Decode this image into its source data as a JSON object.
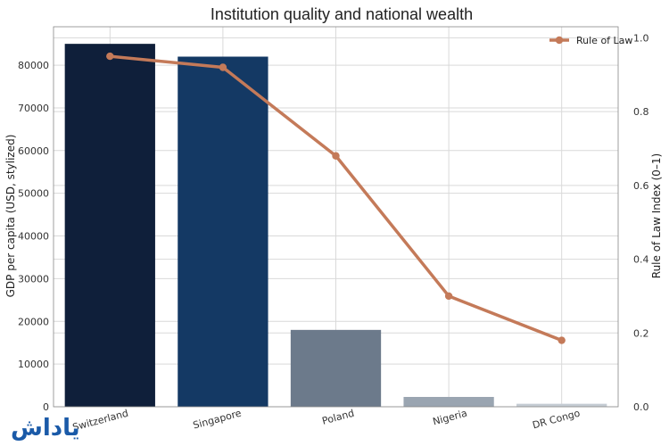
{
  "chart_data": {
    "type": "bar",
    "title": "Institution quality and national wealth",
    "categories": [
      "Switzerland",
      "Singapore",
      "Poland",
      "Nigeria",
      "DR Congo"
    ],
    "series": [
      {
        "name": "",
        "axis": "left",
        "type": "bar",
        "values": [
          85000,
          82000,
          18000,
          2300,
          700
        ],
        "colors": [
          "#0f1f3a",
          "#143964",
          "#6c7a8b",
          "#9aa5b1",
          "#c5ccd3"
        ]
      },
      {
        "name": "Rule of Law",
        "axis": "right",
        "type": "line",
        "values": [
          0.95,
          0.92,
          0.68,
          0.3,
          0.18
        ],
        "color": "#c47a59"
      }
    ],
    "ylabel": "GDP per capita (USD, stylized)",
    "y2label": "Rule of Law Index (0–1)",
    "ylim": [
      0,
      89000
    ],
    "y2lim": [
      0,
      1.03
    ],
    "yticks": [
      0,
      10000,
      20000,
      30000,
      40000,
      50000,
      60000,
      70000,
      80000
    ],
    "y2ticks": [
      "0.0",
      "0.2",
      "0.4",
      "0.6",
      "0.8",
      "1.0"
    ],
    "grid": true,
    "legend_position": "top-right"
  },
  "watermark_text": "یاداش"
}
